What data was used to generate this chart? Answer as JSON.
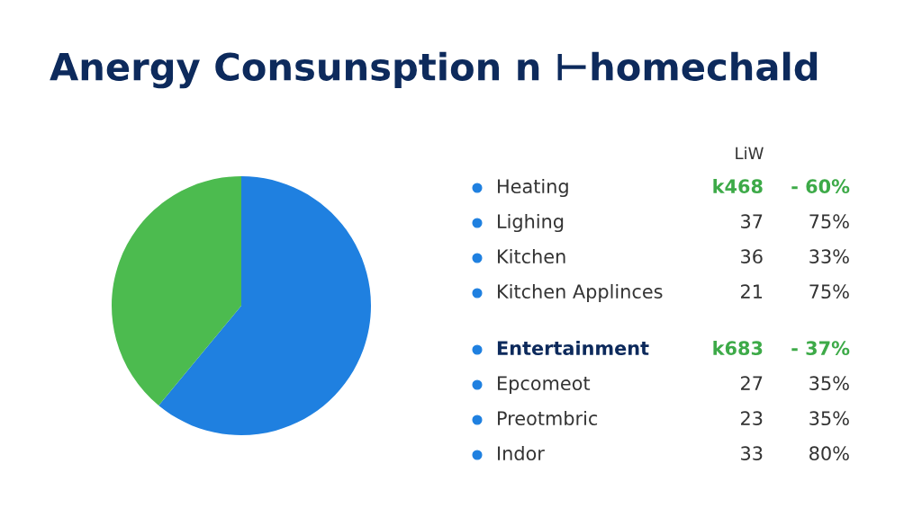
{
  "chart_data": [
    {
      "type": "pie",
      "title": "Anergy Consunsption n ⊢homechald",
      "categories": [
        null,
        null
      ],
      "values": [
        61,
        39
      ],
      "colors": [
        "#1f80e0",
        "#4cbb4f"
      ]
    },
    {
      "type": "other",
      "annotations": [
        "LiW",
        "Heating",
        "k468",
        "- 60%",
        "Lighing",
        "37",
        "75%",
        "Kitchen",
        "36",
        "33%",
        "Kitchen Applinces",
        "21",
        "75%",
        "Entertainment",
        "k683",
        "- 37%",
        "Epcomeot",
        "27",
        "35%",
        "Preotmbric",
        "23",
        "35%",
        "Indor",
        "33",
        "80%"
      ]
    }
  ]
}
